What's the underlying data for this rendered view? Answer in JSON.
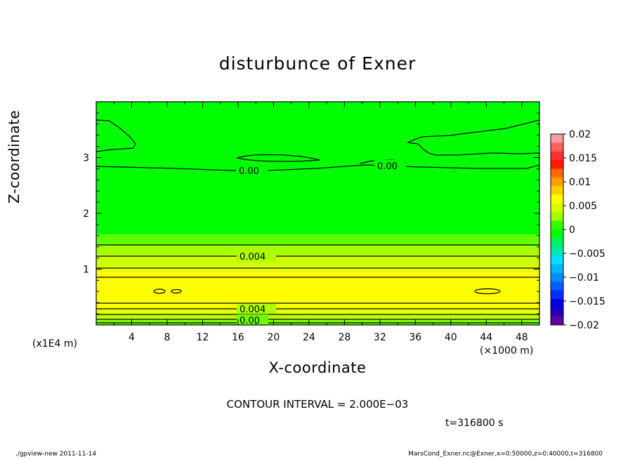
{
  "chart_data": {
    "type": "heatmap",
    "title": "disturbunce of Exner",
    "xlabel": "X-coordinate",
    "ylabel": "Z-coordinate",
    "x_scale_label": "(×1000 m)",
    "z_scale_label": "(x1E4 m)",
    "xlim": [
      0,
      50
    ],
    "ylim": [
      0,
      4
    ],
    "x_ticks": [
      4,
      8,
      12,
      16,
      20,
      24,
      28,
      32,
      36,
      40,
      44,
      48
    ],
    "y_ticks": [
      1,
      2,
      3
    ],
    "colorbar": {
      "ticks": [
        "0.02",
        "0.015",
        "0.01",
        "0.005",
        "0",
        "−0.005",
        "−0.01",
        "−0.015",
        "−0.02"
      ],
      "tick_values": [
        0.02,
        0.015,
        0.01,
        0.005,
        0,
        -0.005,
        -0.01,
        -0.015,
        -0.02
      ],
      "min": -0.02,
      "max": 0.02,
      "colors_top_to_bottom": [
        "#ff9aa0",
        "#ff6060",
        "#ff3030",
        "#ff1a00",
        "#ff6a00",
        "#ffa000",
        "#ffd000",
        "#ffff00",
        "#d8ff00",
        "#a0ff00",
        "#30ff00",
        "#00ff00",
        "#00f060",
        "#00e8b0",
        "#00e0ff",
        "#00b8ff",
        "#0090ff",
        "#0060ff",
        "#0030ff",
        "#0000e0",
        "#2000c0",
        "#6000a0"
      ]
    },
    "vertical_bands": [
      {
        "z_range": [
          0.0,
          0.08
        ],
        "value": 0.002,
        "color": "#70ff00"
      },
      {
        "z_range": [
          0.08,
          0.18
        ],
        "value": 0.004,
        "color": "#b8ff00"
      },
      {
        "z_range": [
          0.18,
          0.32
        ],
        "value": 0.006,
        "color": "#e8ff00"
      },
      {
        "z_range": [
          0.32,
          0.95
        ],
        "value": 0.007,
        "color": "#ffff00"
      },
      {
        "z_range": [
          0.95,
          1.05
        ],
        "value": 0.006,
        "color": "#e8ff00"
      },
      {
        "z_range": [
          1.05,
          1.25
        ],
        "value": 0.005,
        "color": "#ccff00"
      },
      {
        "z_range": [
          1.25,
          1.42
        ],
        "value": 0.004,
        "color": "#a8ff00"
      },
      {
        "z_range": [
          1.42,
          1.62
        ],
        "value": 0.002,
        "color": "#60ff00"
      },
      {
        "z_range": [
          1.62,
          4.0
        ],
        "value": 0.0,
        "color": "#00ff00"
      }
    ],
    "contour_labels": [
      "0.00",
      "0.00",
      "0.004",
      "0.004",
      "0.00"
    ],
    "contour_interval": "CONTOUR INTERVAL = 2.000E−03",
    "time_label": "t=316800 s"
  },
  "footer": {
    "left": "./gpview-new   2011-11-14",
    "right": "MarsCond_Exner.nc@Exner,x=0:50000,z=0:40000,t=316800"
  }
}
